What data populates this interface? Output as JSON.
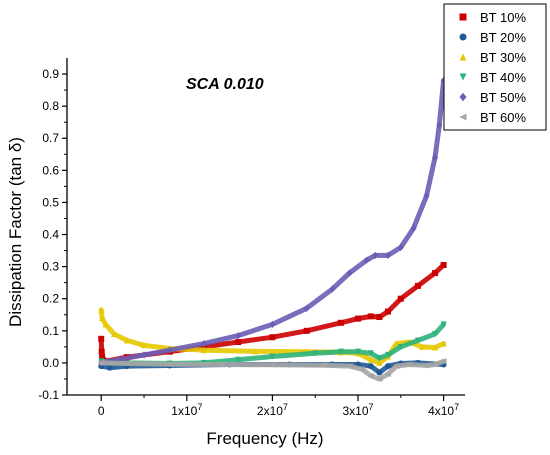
{
  "chart_data": {
    "type": "scatter",
    "title": "",
    "annotation": "SCA 0.010",
    "xlabel": "Frequency (Hz)",
    "ylabel": "Dissipation Factor (tan δ)",
    "xlim": [
      -4000000,
      42500000
    ],
    "ylim": [
      -0.1,
      0.95
    ],
    "x_ticks": [
      {
        "value": 0,
        "label": "0"
      },
      {
        "value": 10000000,
        "label": "1x10",
        "exp": "7"
      },
      {
        "value": 20000000,
        "label": "2x10",
        "exp": "7"
      },
      {
        "value": 30000000,
        "label": "3x10",
        "exp": "7"
      },
      {
        "value": 40000000,
        "label": "4x10",
        "exp": "7"
      }
    ],
    "y_ticks": [
      {
        "value": -0.1,
        "label": "-0.1"
      },
      {
        "value": 0.0,
        "label": "0.0"
      },
      {
        "value": 0.1,
        "label": "0.1"
      },
      {
        "value": 0.2,
        "label": "0.2"
      },
      {
        "value": 0.3,
        "label": "0.3"
      },
      {
        "value": 0.4,
        "label": "0.4"
      },
      {
        "value": 0.5,
        "label": "0.5"
      },
      {
        "value": 0.6,
        "label": "0.6"
      },
      {
        "value": 0.7,
        "label": "0.7"
      },
      {
        "value": 0.8,
        "label": "0.8"
      },
      {
        "value": 0.9,
        "label": "0.9"
      }
    ],
    "grid": false,
    "legend_position": "top-right",
    "series": [
      {
        "name": "BT 10%",
        "color": "#cc0000",
        "marker": "square",
        "points": [
          [
            0,
            0.075
          ],
          [
            50000,
            0.035
          ],
          [
            100000,
            0.02
          ],
          [
            500000,
            0.005
          ],
          [
            3000000,
            0.018
          ],
          [
            8000000,
            0.035
          ],
          [
            12000000,
            0.05
          ],
          [
            16000000,
            0.065
          ],
          [
            20000000,
            0.08
          ],
          [
            24000000,
            0.1
          ],
          [
            28000000,
            0.125
          ],
          [
            30000000,
            0.138
          ],
          [
            31500000,
            0.145
          ],
          [
            32500000,
            0.143
          ],
          [
            33500000,
            0.16
          ],
          [
            35000000,
            0.2
          ],
          [
            37000000,
            0.24
          ],
          [
            39000000,
            0.28
          ],
          [
            40000000,
            0.305
          ]
        ]
      },
      {
        "name": "BT 20%",
        "color": "#1f5a96",
        "marker": "circle",
        "points": [
          [
            0,
            -0.01
          ],
          [
            1000000,
            -0.015
          ],
          [
            3000000,
            -0.01
          ],
          [
            8000000,
            -0.008
          ],
          [
            15000000,
            -0.005
          ],
          [
            22000000,
            -0.005
          ],
          [
            27000000,
            -0.005
          ],
          [
            30000000,
            -0.005
          ],
          [
            31500000,
            -0.01
          ],
          [
            32500000,
            -0.03
          ],
          [
            33500000,
            -0.01
          ],
          [
            35000000,
            -0.002
          ],
          [
            37000000,
            0.0
          ],
          [
            40000000,
            -0.005
          ]
        ]
      },
      {
        "name": "BT 30%",
        "color": "#e6c800",
        "marker": "triangle-up",
        "points": [
          [
            0,
            0.165
          ],
          [
            100000,
            0.14
          ],
          [
            500000,
            0.12
          ],
          [
            1500000,
            0.09
          ],
          [
            3000000,
            0.07
          ],
          [
            5000000,
            0.055
          ],
          [
            8000000,
            0.045
          ],
          [
            12000000,
            0.04
          ],
          [
            18000000,
            0.036
          ],
          [
            24000000,
            0.035
          ],
          [
            28000000,
            0.033
          ],
          [
            30000000,
            0.03
          ],
          [
            31500000,
            0.01
          ],
          [
            32500000,
            0.0
          ],
          [
            33500000,
            0.02
          ],
          [
            34500000,
            0.06
          ],
          [
            36000000,
            0.065
          ],
          [
            37500000,
            0.05
          ],
          [
            39000000,
            0.048
          ],
          [
            40000000,
            0.06
          ]
        ]
      },
      {
        "name": "BT 40%",
        "color": "#2db37a",
        "marker": "triangle-down",
        "points": [
          [
            0,
            0.005
          ],
          [
            3000000,
            0.0
          ],
          [
            8000000,
            -0.002
          ],
          [
            12000000,
            0.0
          ],
          [
            16000000,
            0.01
          ],
          [
            20000000,
            0.02
          ],
          [
            25000000,
            0.03
          ],
          [
            28000000,
            0.035
          ],
          [
            30000000,
            0.035
          ],
          [
            31500000,
            0.03
          ],
          [
            32500000,
            0.015
          ],
          [
            33500000,
            0.025
          ],
          [
            35000000,
            0.05
          ],
          [
            37000000,
            0.07
          ],
          [
            39000000,
            0.09
          ],
          [
            40000000,
            0.12
          ]
        ]
      },
      {
        "name": "BT 50%",
        "color": "#6b5db5",
        "marker": "diamond",
        "points": [
          [
            0,
            0.0
          ],
          [
            2000000,
            0.01
          ],
          [
            5000000,
            0.025
          ],
          [
            8000000,
            0.04
          ],
          [
            12000000,
            0.06
          ],
          [
            16000000,
            0.085
          ],
          [
            20000000,
            0.12
          ],
          [
            24000000,
            0.17
          ],
          [
            27000000,
            0.23
          ],
          [
            29000000,
            0.28
          ],
          [
            31000000,
            0.32
          ],
          [
            32000000,
            0.335
          ],
          [
            33500000,
            0.335
          ],
          [
            35000000,
            0.36
          ],
          [
            36500000,
            0.42
          ],
          [
            38000000,
            0.52
          ],
          [
            39000000,
            0.64
          ],
          [
            39500000,
            0.74
          ],
          [
            40000000,
            0.88
          ]
        ]
      },
      {
        "name": "BT 60%",
        "color": "#a6a6a6",
        "marker": "triangle-left",
        "points": [
          [
            0,
            0.0
          ],
          [
            3000000,
            -0.002
          ],
          [
            8000000,
            -0.004
          ],
          [
            14000000,
            -0.005
          ],
          [
            20000000,
            -0.006
          ],
          [
            26000000,
            -0.007
          ],
          [
            29000000,
            -0.01
          ],
          [
            30500000,
            -0.02
          ],
          [
            31500000,
            -0.04
          ],
          [
            32500000,
            -0.05
          ],
          [
            33500000,
            -0.035
          ],
          [
            34500000,
            -0.01
          ],
          [
            36000000,
            -0.005
          ],
          [
            38000000,
            -0.008
          ],
          [
            39000000,
            -0.005
          ],
          [
            40000000,
            0.005
          ]
        ]
      }
    ]
  }
}
